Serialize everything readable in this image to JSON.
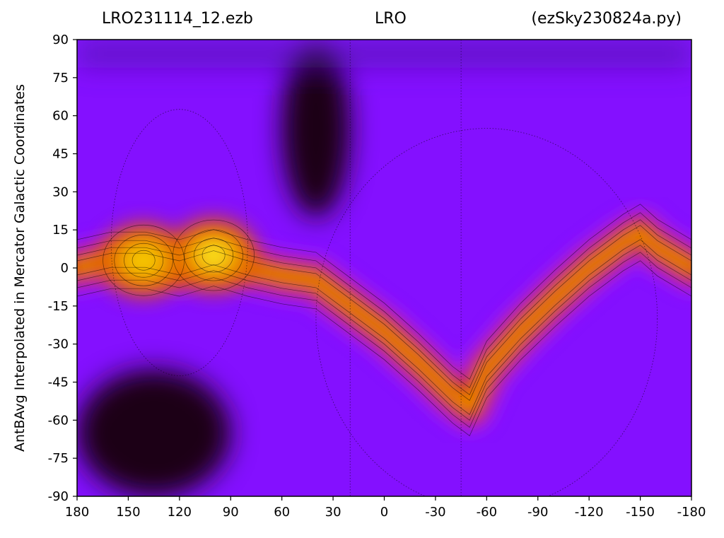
{
  "title": {
    "left": "LRO231114_12.ezb",
    "center": "LRO",
    "right": "(ezSky230824a.py)"
  },
  "colors": {
    "palette": [
      "#8410ff",
      "#a020f0",
      "#c81e5a",
      "#b81e00",
      "#e05000",
      "#ee9000",
      "#f6cc00",
      "#ffff30"
    ],
    "background_level": "#8410ff",
    "dark_region": "#1e0412"
  },
  "chart_data": {
    "type": "heatmap",
    "colormap": "gnuplot-style (dark purple → violet → red → orange → yellow)",
    "contour_lines": true,
    "xlabel": "",
    "ylabel": "AntBAvg Interpolated in Mercator Galactic Coordinates",
    "xlim": [
      180,
      -180
    ],
    "ylim": [
      -90,
      90
    ],
    "x_ticks": [
      "180",
      "150",
      "120",
      "90",
      "60",
      "30",
      "0",
      "-30",
      "-60",
      "-90",
      "-120",
      "-150",
      "-180"
    ],
    "y_ticks": [
      "90",
      "75",
      "60",
      "45",
      "30",
      "15",
      "0",
      "-15",
      "-30",
      "-45",
      "-60",
      "-75",
      "-90"
    ],
    "features": [
      {
        "name": "galactic-plane-band",
        "description": "bright ridge following the galactic plane",
        "path_lon_lat": [
          [
            180,
            0
          ],
          [
            160,
            3
          ],
          [
            140,
            3
          ],
          [
            120,
            0
          ],
          [
            100,
            4
          ],
          [
            80,
            0
          ],
          [
            60,
            -3
          ],
          [
            40,
            -5
          ],
          [
            20,
            -15
          ],
          [
            0,
            -25
          ],
          [
            -20,
            -37
          ],
          [
            -40,
            -50
          ],
          [
            -50,
            -55
          ],
          [
            -60,
            -40
          ],
          [
            -80,
            -25
          ],
          [
            -100,
            -12
          ],
          [
            -120,
            0
          ],
          [
            -140,
            10
          ],
          [
            -150,
            14
          ],
          [
            -160,
            8
          ],
          [
            -180,
            0
          ]
        ],
        "relative_level": 0.68
      },
      {
        "name": "hotspot-1",
        "lon": 141,
        "lat": 3,
        "relative_level": 0.88
      },
      {
        "name": "hotspot-2",
        "lon": 100,
        "lat": 5,
        "relative_level": 1.0
      },
      {
        "name": "dark-region-low-left",
        "lon_range": [
          180,
          90
        ],
        "lat_range": [
          -90,
          -40
        ]
      },
      {
        "name": "dark-region-upper-center",
        "lon_range": [
          60,
          20
        ],
        "lat_range": [
          20,
          90
        ]
      }
    ]
  }
}
